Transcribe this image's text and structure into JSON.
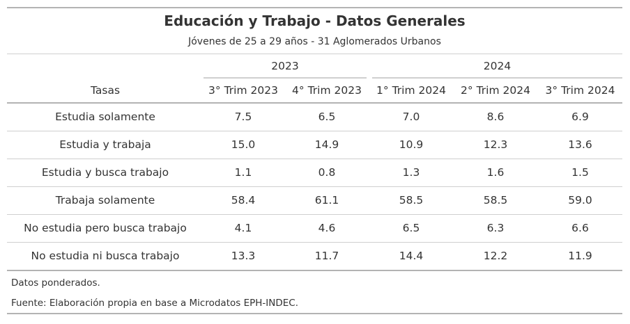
{
  "chart_data": {
    "type": "table",
    "title": "Educación y Trabajo - Datos Generales",
    "subtitle": "Jóvenes de 25 a 29 años - 31 Aglomerados Urbanos",
    "row_header": "Tasas",
    "column_groups": [
      {
        "label": "2023",
        "columns": [
          "3° Trim 2023",
          "4° Trim 2023"
        ]
      },
      {
        "label": "2024",
        "columns": [
          "1° Trim 2024",
          "2° Trim 2024",
          "3° Trim 2024"
        ]
      }
    ],
    "columns": [
      "3° Trim 2023",
      "4° Trim 2023",
      "1° Trim 2024",
      "2° Trim 2024",
      "3° Trim 2024"
    ],
    "rows": [
      {
        "label": "Estudia solamente",
        "values": [
          "7.5",
          "6.5",
          "7.0",
          "8.6",
          "6.9"
        ]
      },
      {
        "label": "Estudia y trabaja",
        "values": [
          "15.0",
          "14.9",
          "10.9",
          "12.3",
          "13.6"
        ]
      },
      {
        "label": "Estudia y busca trabajo",
        "values": [
          "1.1",
          "0.8",
          "1.3",
          "1.6",
          "1.5"
        ]
      },
      {
        "label": "Trabaja solamente",
        "values": [
          "58.4",
          "61.1",
          "58.5",
          "58.5",
          "59.0"
        ]
      },
      {
        "label": "No estudia pero busca trabajo",
        "values": [
          "4.1",
          "4.6",
          "6.5",
          "6.3",
          "6.6"
        ]
      },
      {
        "label": "No estudia ni busca trabajo",
        "values": [
          "13.3",
          "11.7",
          "14.4",
          "12.2",
          "11.9"
        ]
      }
    ],
    "notes": [
      "Datos ponderados.",
      "Fuente: Elaboración propia en base a Microdatos EPH-INDEC."
    ]
  }
}
